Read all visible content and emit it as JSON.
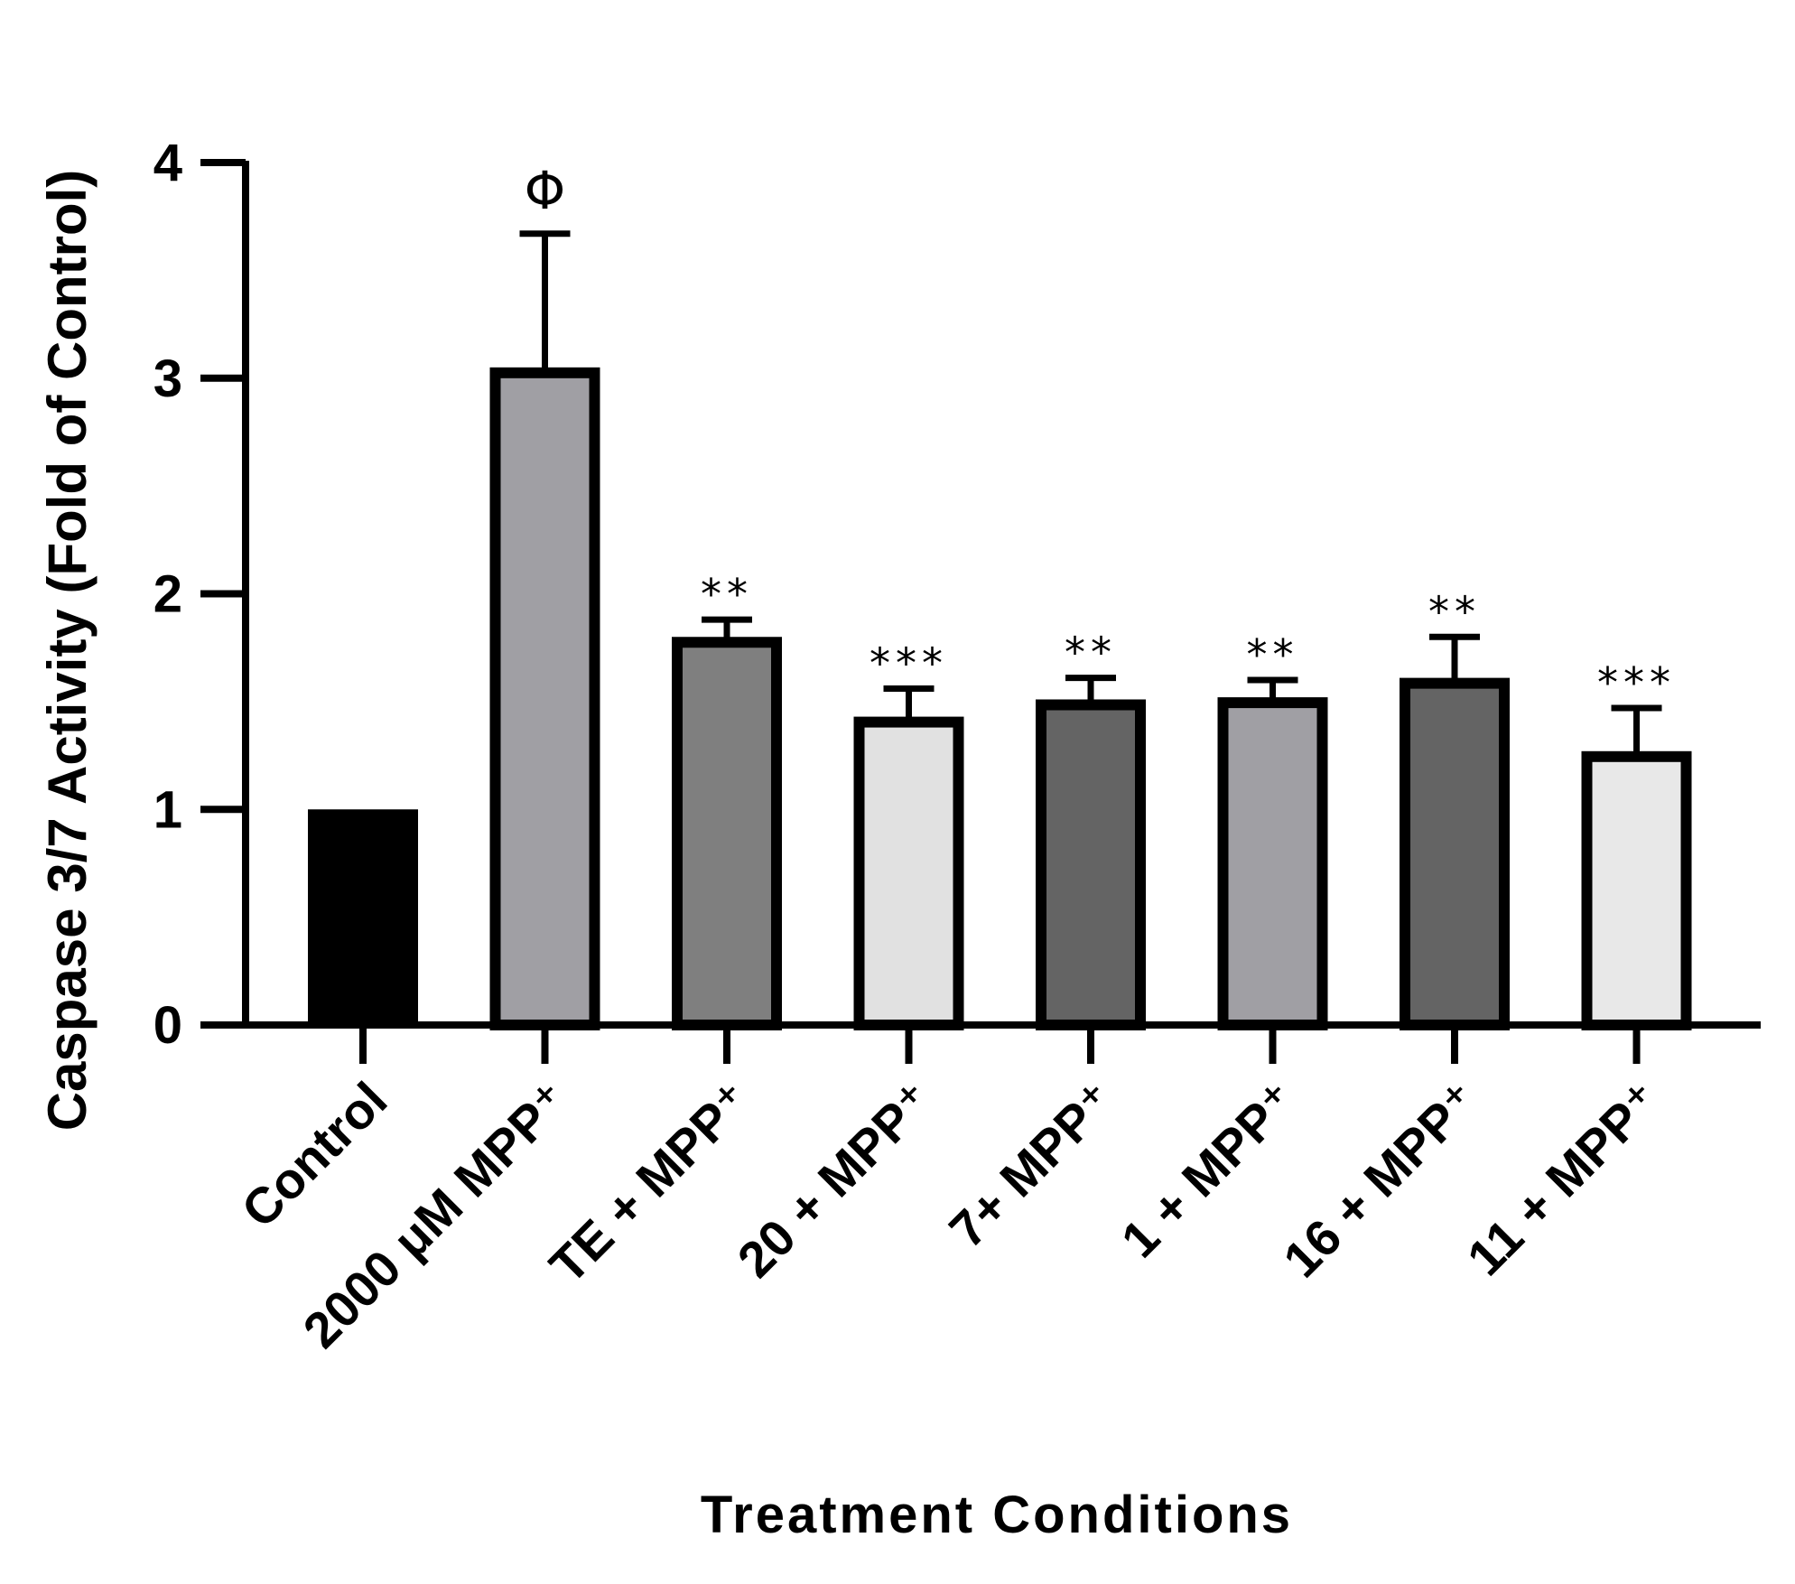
{
  "chart_data": {
    "type": "bar",
    "title": "",
    "xlabel": "Treatment Conditions",
    "ylabel": "Caspase 3/7 Activity (Fold of Control)",
    "ylim": [
      0,
      4
    ],
    "yticks": [
      0,
      1,
      2,
      3,
      4
    ],
    "grid": false,
    "categories": [
      "Control",
      "2000 μM MPP⁺",
      "TE + MPP⁺",
      "20 + MPP⁺",
      "7+ MPP⁺",
      "1 + MPP⁺",
      "16 + MPP⁺",
      "11 + MPP⁺"
    ],
    "values": [
      1.0,
      3.05,
      1.8,
      1.43,
      1.51,
      1.52,
      1.61,
      1.27
    ],
    "errors": [
      0,
      0.62,
      0.08,
      0.13,
      0.1,
      0.08,
      0.19,
      0.2
    ],
    "significance": [
      "",
      "Φ",
      "**",
      "***",
      "**",
      "**",
      "**",
      "***"
    ],
    "colors": [
      "#000000",
      "#a09fa4",
      "#7f7f7f",
      "#e1e1e1",
      "#646464",
      "#a09fa4",
      "#646464",
      "#e8e8e8"
    ]
  }
}
